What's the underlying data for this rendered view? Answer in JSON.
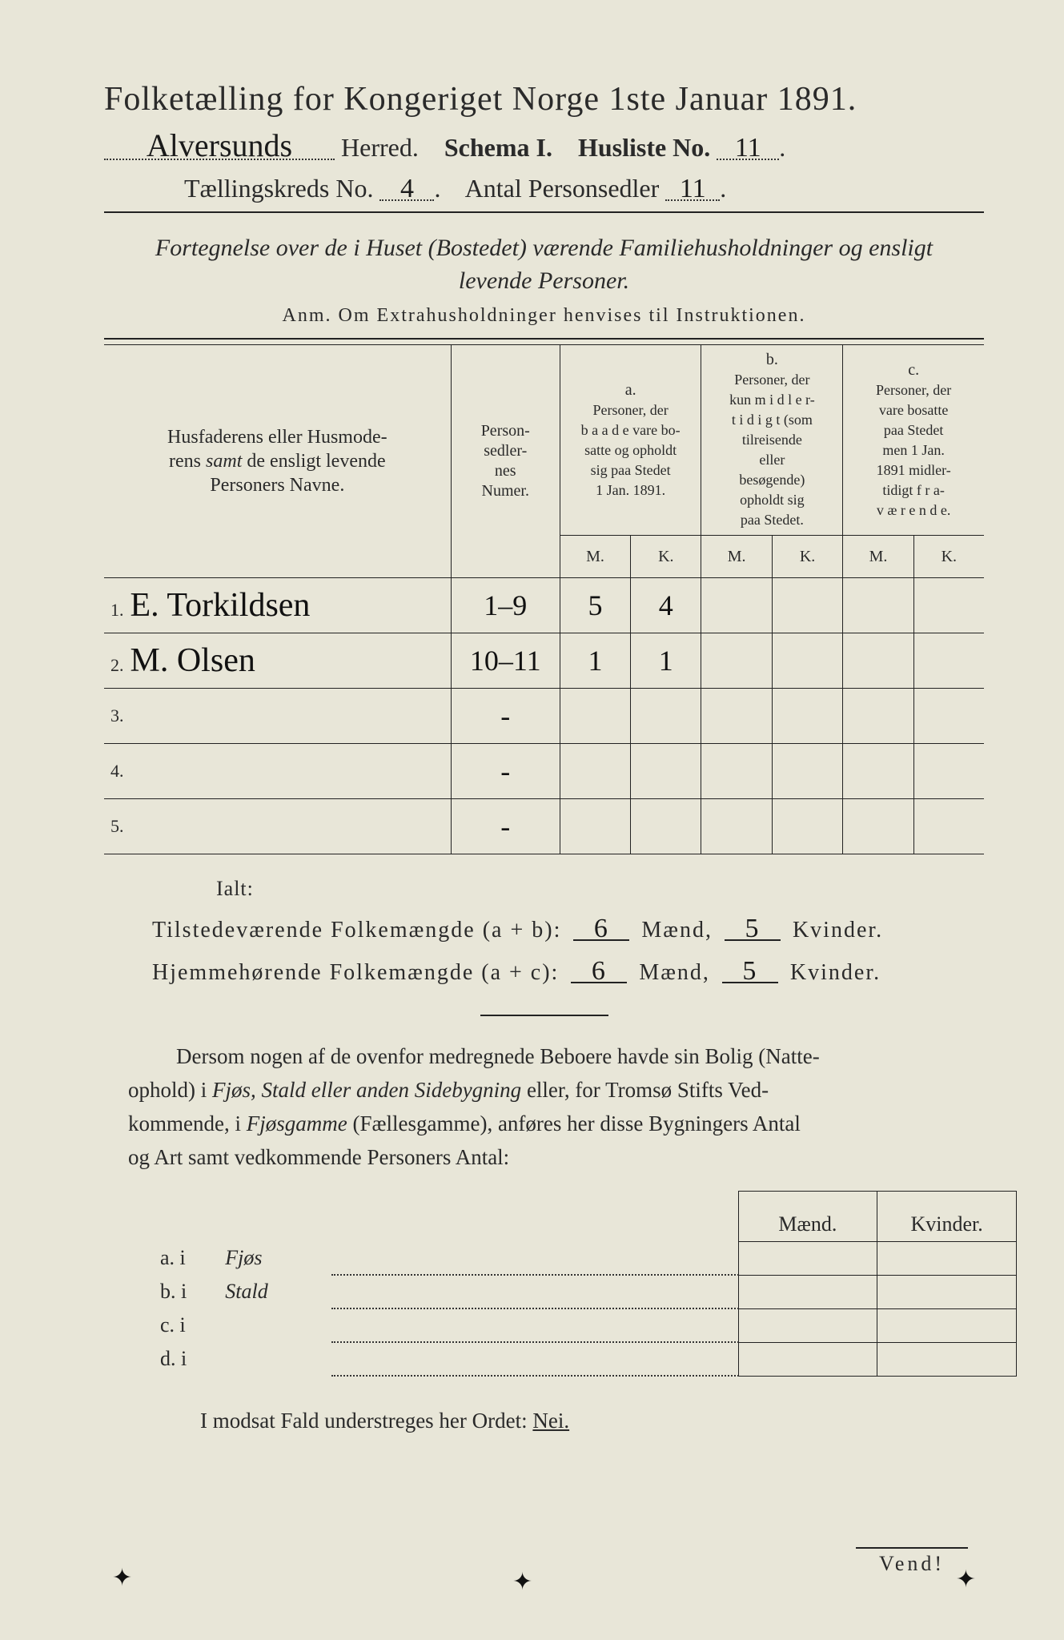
{
  "colors": {
    "paper": "#e8e6d8",
    "ink": "#2a2a2a",
    "rule": "#222222",
    "dotted": "#333333"
  },
  "title": {
    "main": "Folketælling for Kongeriget Norge 1ste Januar 1891.",
    "herred_hand": "Alversunds",
    "herred_label": "Herred.",
    "schema": "Schema I.",
    "husliste_label": "Husliste No.",
    "husliste_no": "11",
    "kreds_label": "Tællingskreds No.",
    "kreds_no": "4",
    "antal_label": "Antal Personsedler",
    "antal_no": "11"
  },
  "subtitle": "Fortegnelse over de i Huset (Bostedet) værende Familiehusholdninger og ensligt levende Personer.",
  "anm": "Anm.  Om Extrahusholdninger henvises til Instruktionen.",
  "headers": {
    "col1": "Husfaderens eller Husmoderens samt de ensligt levende Personers Navne.",
    "col2": "Person-sedler-nes Numer.",
    "a_label": "a.",
    "a_text": "Personer, der baade vare bosatte og opholdt sig paa Stedet 1 Jan. 1891.",
    "b_label": "b.",
    "b_text": "Personer, der kun midler-tidigt (som tilreisende eller besøgende) opholdt sig paa Stedet.",
    "c_label": "c.",
    "c_text": "Personer, der vare bosatte paa Stedet men 1 Jan. 1891 midler-tidigt fra-værende.",
    "M": "M.",
    "K": "K."
  },
  "rows": [
    {
      "n": "1.",
      "name": "E. Torkildsen",
      "ps": "1–9",
      "aM": "5",
      "aK": "4",
      "bM": "",
      "bK": "",
      "cM": "",
      "cK": ""
    },
    {
      "n": "2.",
      "name": "M. Olsen",
      "ps": "10–11",
      "aM": "1",
      "aK": "1",
      "bM": "",
      "bK": "",
      "cM": "",
      "cK": ""
    },
    {
      "n": "3.",
      "name": "",
      "ps": "-",
      "aM": "",
      "aK": "",
      "bM": "",
      "bK": "",
      "cM": "",
      "cK": ""
    },
    {
      "n": "4.",
      "name": "",
      "ps": "-",
      "aM": "",
      "aK": "",
      "bM": "",
      "bK": "",
      "cM": "",
      "cK": ""
    },
    {
      "n": "5.",
      "name": "",
      "ps": "-",
      "aM": "",
      "aK": "",
      "bM": "",
      "bK": "",
      "cM": "",
      "cK": ""
    }
  ],
  "ialt": "Ialt:",
  "totals": {
    "line1_label": "Tilstedeværende Folkemængde (a + b):",
    "line2_label": "Hjemmehørende Folkemængde (a + c):",
    "maend": "Mænd,",
    "kvinder": "Kvinder.",
    "l1M": "6",
    "l1K": "5",
    "l2M": "6",
    "l2K": "5"
  },
  "paragraph": "Dersom nogen af de ovenfor medregnede Beboere havde sin Bolig (Natte-ophold) i Fjøs, Stald eller anden Sidebygning eller, for Tromsø Stifts Ved-kommende, i Fjøsgamme (Fællesgamme), anføres her disse Bygningers Antal og Art samt vedkommende Personers Antal:",
  "small_table": {
    "h1": "Mænd.",
    "h2": "Kvinder.",
    "rows": [
      {
        "lab": "a.  i",
        "txt": "Fjøs"
      },
      {
        "lab": "b.  i",
        "txt": "Stald"
      },
      {
        "lab": "c.  i",
        "txt": ""
      },
      {
        "lab": "d.  i",
        "txt": ""
      }
    ]
  },
  "modsat": "I modsat Fald understreges her Ordet:",
  "nei": "Nei.",
  "vend": "Vend!"
}
